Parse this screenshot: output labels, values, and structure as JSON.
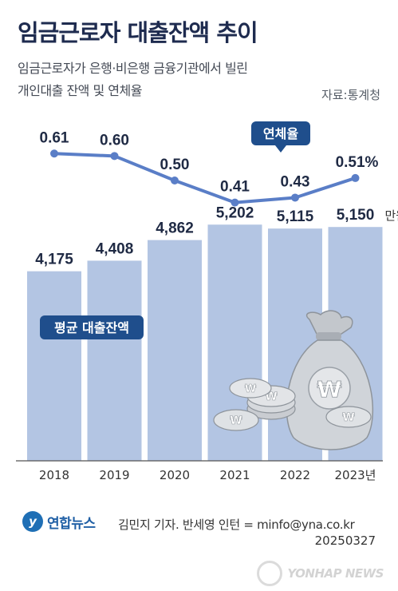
{
  "header": {
    "title": "임금근로자 대출잔액 추이",
    "subtitle_line1": "임금근로자가 은행·비은행 금융기관에서 빌린",
    "subtitle_line2": "개인대출 잔액 및 연체율",
    "source": "자료:통계청"
  },
  "chart_data": {
    "type": "bar",
    "categories": [
      "2018",
      "2019",
      "2020",
      "2021",
      "2022",
      "2023년"
    ],
    "series": [
      {
        "name": "평균 대출잔액",
        "type": "bar",
        "values": [
          4175,
          4408,
          4862,
          5202,
          5115,
          5150
        ],
        "labels": [
          "4,175",
          "4,408",
          "4,862",
          "5,202",
          "5,115",
          "5,150"
        ],
        "unit": "만 원",
        "color": "#b3c5e3"
      },
      {
        "name": "연체율",
        "type": "line",
        "values": [
          0.61,
          0.6,
          0.5,
          0.41,
          0.43,
          0.51
        ],
        "labels": [
          "0.61",
          "0.60",
          "0.50",
          "0.41",
          "0.43",
          "0.51%"
        ],
        "unit": "%",
        "color": "#5a7ec7"
      }
    ],
    "bar_ylim": [
      0,
      5400
    ],
    "line_ylim": [
      0.35,
      0.65
    ],
    "grid": false,
    "legend": "inline badges"
  },
  "colors": {
    "bar": "#b3c5e3",
    "line": "#5a7ec7",
    "badge": "#1f4e8c",
    "title": "#1e2b4f"
  },
  "illustration": "money-bag-and-won-coins-icon",
  "footer": {
    "logo_text": "연합뉴스",
    "credit": "김민지 기자. 반세영 인턴 = minfo@yna.co.kr",
    "code": "20250327",
    "watermark": "YONHAP NEWS"
  }
}
